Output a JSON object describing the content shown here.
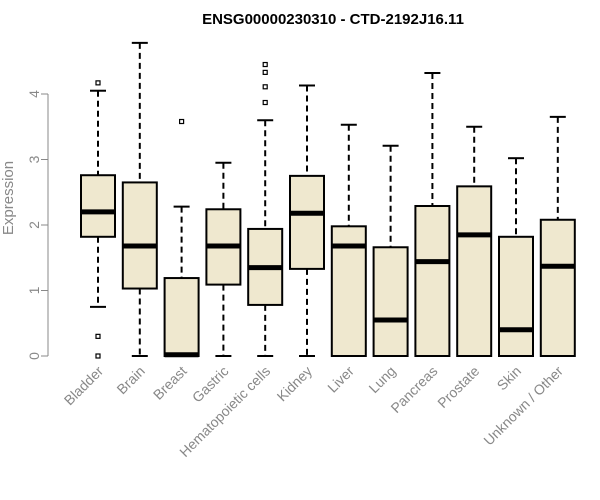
{
  "chart_data": {
    "type": "box",
    "title": "ENSG00000230310 - CTD-2192J16.11",
    "xlabel": "",
    "ylabel": "Expression",
    "ylim": [
      0,
      4.85
    ],
    "yticks": [
      0,
      1,
      2,
      3,
      4
    ],
    "grid": false,
    "legend": "none",
    "colors": {
      "box_fill": "#efe8cf",
      "stroke": "#000000",
      "axis": "#888888"
    },
    "categories": [
      "Bladder",
      "Brain",
      "Breast",
      "Gastric",
      "Hematopoietic cells",
      "Kidney",
      "Liver",
      "Lung",
      "Pancreas",
      "Prostate",
      "Skin",
      "Unknown / Other"
    ],
    "boxes": [
      {
        "min": 0.75,
        "q1": 1.82,
        "median": 2.2,
        "q3": 2.76,
        "max": 4.05,
        "outliers": [
          4.17,
          0.3,
          0.0
        ]
      },
      {
        "min": 0.0,
        "q1": 1.03,
        "median": 1.68,
        "q3": 2.65,
        "max": 4.78,
        "outliers": []
      },
      {
        "min": 0.0,
        "q1": 0.0,
        "median": 0.02,
        "q3": 1.19,
        "max": 2.28,
        "outliers": [
          3.58
        ]
      },
      {
        "min": 0.0,
        "q1": 1.09,
        "median": 1.68,
        "q3": 2.24,
        "max": 2.95,
        "outliers": []
      },
      {
        "min": 0.0,
        "q1": 0.78,
        "median": 1.35,
        "q3": 1.94,
        "max": 3.6,
        "outliers": [
          4.45,
          4.33,
          4.11,
          3.87
        ]
      },
      {
        "min": 0.0,
        "q1": 1.33,
        "median": 2.18,
        "q3": 2.75,
        "max": 4.13,
        "outliers": []
      },
      {
        "min": 0.0,
        "q1": 0.0,
        "median": 1.68,
        "q3": 1.98,
        "max": 3.53,
        "outliers": []
      },
      {
        "min": 0.0,
        "q1": 0.0,
        "median": 0.55,
        "q3": 1.66,
        "max": 3.21,
        "outliers": []
      },
      {
        "min": 0.0,
        "q1": 0.0,
        "median": 1.44,
        "q3": 2.29,
        "max": 4.32,
        "outliers": []
      },
      {
        "min": 0.0,
        "q1": 0.0,
        "median": 1.85,
        "q3": 2.59,
        "max": 3.5,
        "outliers": []
      },
      {
        "min": 0.0,
        "q1": 0.0,
        "median": 0.4,
        "q3": 1.82,
        "max": 3.02,
        "outliers": []
      },
      {
        "min": 0.0,
        "q1": 0.0,
        "median": 1.37,
        "q3": 2.08,
        "max": 3.65,
        "outliers": []
      }
    ]
  }
}
